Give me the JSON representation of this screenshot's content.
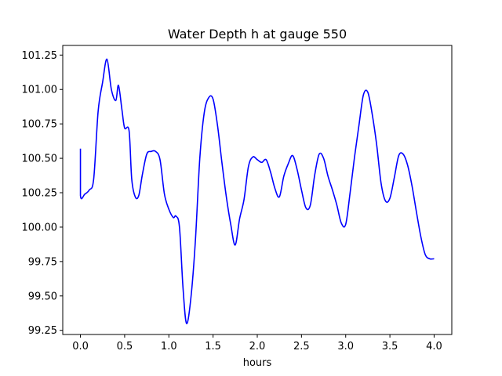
{
  "chart_data": {
    "type": "line",
    "title": "Water Depth h at gauge 550",
    "xlabel": "hours",
    "ylabel": "",
    "xlim": [
      -0.2,
      4.2
    ],
    "ylim": [
      99.22,
      101.32
    ],
    "xticks": [
      0.0,
      0.5,
      1.0,
      1.5,
      2.0,
      2.5,
      3.0,
      3.5,
      4.0
    ],
    "xtick_labels": [
      "0.0",
      "0.5",
      "1.0",
      "1.5",
      "2.0",
      "2.5",
      "3.0",
      "3.5",
      "4.0"
    ],
    "yticks": [
      99.25,
      99.5,
      99.75,
      100.0,
      100.25,
      100.5,
      100.75,
      101.0,
      101.25
    ],
    "ytick_labels": [
      "99.25",
      "99.50",
      "99.75",
      "100.00",
      "100.25",
      "100.50",
      "100.75",
      "101.00",
      "101.25"
    ],
    "grid": false,
    "line_color": "#0000ff",
    "series": [
      {
        "x": [
          0.0,
          0.0,
          0.05,
          0.1,
          0.15,
          0.2,
          0.25,
          0.3,
          0.35,
          0.4,
          0.43,
          0.47,
          0.5,
          0.55,
          0.58,
          0.62,
          0.66,
          0.7,
          0.75,
          0.8,
          0.85,
          0.9,
          0.95,
          1.0,
          1.05,
          1.08,
          1.12,
          1.16,
          1.2,
          1.25,
          1.3,
          1.35,
          1.4,
          1.45,
          1.5,
          1.55,
          1.6,
          1.65,
          1.7,
          1.75,
          1.8,
          1.85,
          1.9,
          1.95,
          2.0,
          2.05,
          2.1,
          2.15,
          2.2,
          2.25,
          2.3,
          2.35,
          2.4,
          2.45,
          2.5,
          2.55,
          2.6,
          2.65,
          2.7,
          2.75,
          2.8,
          2.85,
          2.9,
          2.95,
          3.0,
          3.05,
          3.1,
          3.15,
          3.2,
          3.25,
          3.3,
          3.35,
          3.4,
          3.45,
          3.5,
          3.55,
          3.6,
          3.65,
          3.7,
          3.75,
          3.8,
          3.85,
          3.9,
          3.95,
          4.0
        ],
        "y": [
          100.57,
          100.23,
          100.24,
          100.27,
          100.35,
          100.84,
          101.05,
          101.22,
          101.0,
          100.92,
          101.03,
          100.85,
          100.72,
          100.7,
          100.35,
          100.22,
          100.23,
          100.38,
          100.53,
          100.55,
          100.55,
          100.49,
          100.24,
          100.13,
          100.07,
          100.08,
          100.0,
          99.56,
          99.3,
          99.49,
          99.9,
          100.5,
          100.83,
          100.94,
          100.93,
          100.74,
          100.47,
          100.22,
          100.02,
          99.87,
          100.06,
          100.2,
          100.44,
          100.51,
          100.49,
          100.47,
          100.49,
          100.4,
          100.28,
          100.22,
          100.37,
          100.46,
          100.52,
          100.42,
          100.27,
          100.14,
          100.16,
          100.38,
          100.53,
          100.5,
          100.37,
          100.27,
          100.16,
          100.03,
          100.02,
          100.25,
          100.51,
          100.74,
          100.96,
          100.98,
          100.82,
          100.6,
          100.32,
          100.19,
          100.21,
          100.36,
          100.52,
          100.53,
          100.45,
          100.3,
          100.11,
          99.93,
          99.8,
          99.77,
          99.77
        ]
      }
    ]
  }
}
